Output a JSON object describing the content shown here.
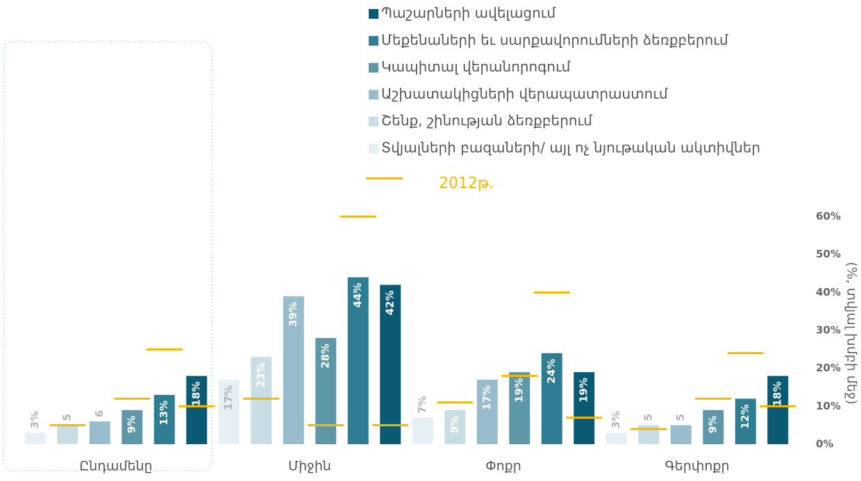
{
  "chart_data": {
    "type": "bar",
    "categories": [
      "Ընդամենը",
      "Միջին",
      "Փոքր",
      "Գերփոքր"
    ],
    "series": [
      {
        "name": "Պաշարների ավելացում",
        "color": "#0b5a73",
        "values": [
          18,
          42,
          19,
          18
        ],
        "value_labels": [
          "18%",
          "42%",
          "19%",
          "18%"
        ],
        "values_2012": [
          10,
          5,
          7,
          10
        ]
      },
      {
        "name": "Մեքենաների եւ սարքավորումների ձեռքբերում",
        "color": "#2f7d92",
        "values": [
          13,
          44,
          24,
          12
        ],
        "value_labels": [
          "13%",
          "44%",
          "24%",
          "12%"
        ],
        "values_2012": [
          25,
          60,
          40,
          24
        ]
      },
      {
        "name": "Կապիտալ վերանորոգում",
        "color": "#5e98a8",
        "values": [
          9,
          28,
          19,
          9
        ],
        "value_labels": [
          "9%",
          "28%",
          "19%",
          "9%"
        ],
        "values_2012": [
          12,
          5,
          18,
          12
        ]
      },
      {
        "name": "Աշխատակիցների վերապատրաստում",
        "color": "#98bccb",
        "values": [
          6,
          39,
          17,
          5
        ],
        "value_labels": [
          "6",
          "39%",
          "17%",
          "5"
        ],
        "values_2012": [
          null,
          null,
          null,
          null
        ]
      },
      {
        "name": "Շենք, շինության ձեռքբերում",
        "color": "#c9dde4",
        "values": [
          5,
          23,
          9,
          5
        ],
        "value_labels": [
          "5",
          "23%",
          "9%",
          "5"
        ],
        "values_2012": [
          5,
          12,
          11,
          4
        ]
      },
      {
        "name": "Տվյալների բազաների/ այլ ոչ նյութական ակտիվներ",
        "color": "#e6eff3",
        "values": [
          3,
          17,
          7,
          3
        ],
        "value_labels": [
          "3%",
          "17%",
          "7%",
          "3%"
        ],
        "values_2012": [
          null,
          null,
          null,
          null
        ]
      }
    ],
    "marker_name": "2012թ.",
    "marker_color": "#f5b800",
    "y_axis_label": "(%, տվյալ խմբի մեջ)",
    "ylim": [
      0,
      60
    ],
    "yticks": [
      {
        "value": 0,
        "label": "0%"
      },
      {
        "value": 10,
        "label": "10%"
      },
      {
        "value": 20,
        "label": "20%"
      },
      {
        "value": 30,
        "label": "30%"
      },
      {
        "value": 40,
        "label": "40%"
      },
      {
        "value": 50,
        "label": "50%"
      },
      {
        "value": 60,
        "label": "60%"
      }
    ],
    "grid": false
  }
}
